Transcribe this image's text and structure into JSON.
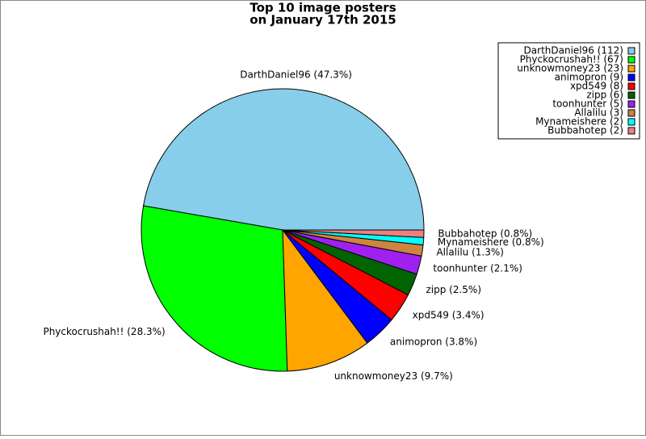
{
  "chart_data": {
    "type": "pie",
    "title": [
      "Top 10 image posters",
      "on January 17th 2015"
    ],
    "categories": [
      "DarthDaniel96",
      "Phyckocrushah!!",
      "unknowmoney23",
      "animopron",
      "xpd549",
      "zipp",
      "toonhunter",
      "Allalilu",
      "Mynameishere",
      "Bubbahotep"
    ],
    "values": [
      112,
      67,
      23,
      9,
      8,
      6,
      5,
      3,
      2,
      2
    ],
    "slice_labels": [
      "DarthDaniel96 (47.3%)",
      "Phyckocrushah!! (28.3%)",
      "unknowmoney23 (9.7%)",
      "animopron (3.8%)",
      "xpd549 (3.4%)",
      "zipp (2.5%)",
      "toonhunter (2.1%)",
      "Allalilu (1.3%)",
      "Mynameishere (0.8%)",
      "Bubbahotep (0.8%)"
    ],
    "legend_labels": [
      "DarthDaniel96 (112)",
      "Phyckocrushah!! (67)",
      "unknowmoney23 (23)",
      "animopron (9)",
      "xpd549 (8)",
      "zipp (6)",
      "toonhunter (5)",
      "Allalilu (3)",
      "Mynameishere (2)",
      "Bubbahotep (2)"
    ],
    "colors": [
      "#87ceeb",
      "#00ff00",
      "#ffa500",
      "#0000ff",
      "#ff0000",
      "#006400",
      "#a020f0",
      "#cd853f",
      "#00ffff",
      "#f08080"
    ],
    "legend": "upper right"
  }
}
